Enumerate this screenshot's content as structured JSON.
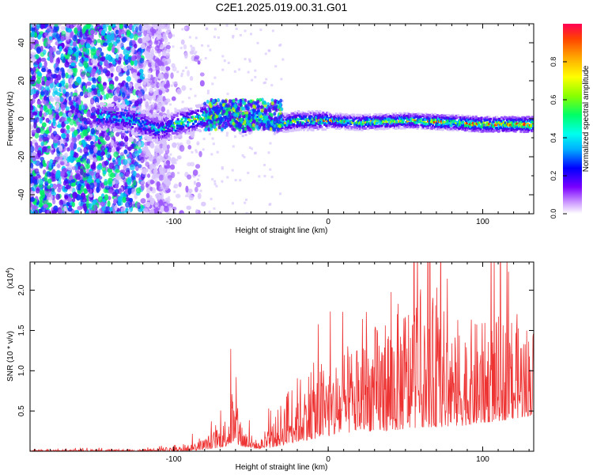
{
  "title": "C2E1.2025.019.00.31.G01",
  "colorbar": {
    "label": "Normalized spectral amplitude",
    "ticks": [
      "0.0",
      "0.2",
      "0.4",
      "0.6",
      "0.8"
    ]
  },
  "chart_data": [
    {
      "type": "heatmap",
      "xlabel": "Height of straight line (km)",
      "ylabel": "Frequency (Hz)",
      "xlim": [
        -193,
        133
      ],
      "ylim": [
        -50,
        50
      ],
      "x_ticks": [
        "-100",
        "0",
        "100"
      ],
      "y_ticks": [
        "-40",
        "-20",
        "0",
        "20",
        "40"
      ],
      "colormap": [
        "#ffffff",
        "#7b00ff",
        "#0000ff",
        "#00e5ff",
        "#00ff00",
        "#ffff00",
        "#ff9900",
        "#ff0000"
      ],
      "ridge": [
        {
          "x": -190,
          "y": -15
        },
        {
          "x": -160,
          "y": 2
        },
        {
          "x": -130,
          "y": 0
        },
        {
          "x": -110,
          "y": -6
        },
        {
          "x": -95,
          "y": -2
        },
        {
          "x": -75,
          "y": 2
        },
        {
          "x": -62,
          "y": 3
        },
        {
          "x": -55,
          "y": -3
        },
        {
          "x": -45,
          "y": 2
        },
        {
          "x": -35,
          "y": -3
        },
        {
          "x": -20,
          "y": -1
        },
        {
          "x": 0,
          "y": -1
        },
        {
          "x": 20,
          "y": -2
        },
        {
          "x": 50,
          "y": -1
        },
        {
          "x": 80,
          "y": -2
        },
        {
          "x": 100,
          "y": -3
        },
        {
          "x": 133,
          "y": -3
        }
      ]
    },
    {
      "type": "line",
      "xlabel": "Height of straight line (km)",
      "ylabel": "SNR (10 * v/v)",
      "y_multiplier": "(x10",
      "y_multiplier_exp": "4",
      "xlim": [
        -193,
        133
      ],
      "ylim": [
        0,
        2.35
      ],
      "x_ticks": [
        "-100",
        "0",
        "100"
      ],
      "y_ticks": [
        "0.5",
        "1.0",
        "1.5",
        "2.0"
      ],
      "color": "#ee3333",
      "envelope": [
        {
          "x": -193,
          "low": 0.0,
          "high": 0.02
        },
        {
          "x": -120,
          "low": 0.0,
          "high": 0.03
        },
        {
          "x": -95,
          "low": 0.0,
          "high": 0.07
        },
        {
          "x": -80,
          "low": 0.02,
          "high": 0.18
        },
        {
          "x": -68,
          "low": 0.05,
          "high": 0.4
        },
        {
          "x": -62,
          "low": 0.1,
          "high": 0.82
        },
        {
          "x": -55,
          "low": 0.05,
          "high": 0.35
        },
        {
          "x": -45,
          "low": 0.03,
          "high": 0.12
        },
        {
          "x": -35,
          "low": 0.05,
          "high": 0.45
        },
        {
          "x": -25,
          "low": 0.1,
          "high": 0.95
        },
        {
          "x": -10,
          "low": 0.15,
          "high": 1.2
        },
        {
          "x": 5,
          "low": 0.2,
          "high": 1.35
        },
        {
          "x": 20,
          "low": 0.25,
          "high": 1.5
        },
        {
          "x": 40,
          "low": 0.25,
          "high": 1.95
        },
        {
          "x": 60,
          "low": 0.3,
          "high": 2.25
        },
        {
          "x": 80,
          "low": 0.3,
          "high": 1.85
        },
        {
          "x": 100,
          "low": 0.35,
          "high": 1.75
        },
        {
          "x": 120,
          "low": 0.4,
          "high": 1.9
        },
        {
          "x": 133,
          "low": 0.45,
          "high": 1.7
        }
      ]
    }
  ]
}
